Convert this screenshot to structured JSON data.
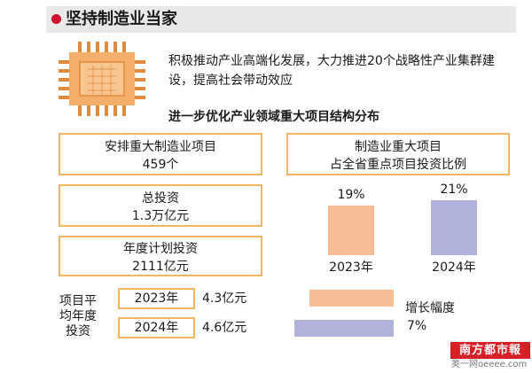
{
  "header": {
    "title": "坚持制造业当家",
    "dot_color": "#d0112b"
  },
  "intro": "积极推动产业高端化发展，大力推进20个战略性产业集群建设，提高社会带动效应",
  "section_title": "进一步优化产业领域重大项目结构分布",
  "stats": {
    "projects": {
      "label": "安排重大制造业项目",
      "value": "459个"
    },
    "total_investment": {
      "label": "总投资",
      "value": "1.3万亿元"
    },
    "annual_plan": {
      "label": "年度计划投资",
      "value": "2111亿元"
    }
  },
  "average": {
    "label": "项目平均年度投资",
    "rows": [
      {
        "year": "2023年",
        "value": "4.3亿元"
      },
      {
        "year": "2024年",
        "value": "4.6亿元"
      }
    ]
  },
  "share_box": {
    "line1": "制造业重大项目",
    "line2": "占全省重点项目投资比例"
  },
  "legend": {
    "growth_label": "增长幅度",
    "growth_value": "7%"
  },
  "watermark": {
    "brand": "南方都市報",
    "site": "奥一网oeeee.com"
  },
  "colors": {
    "accent_border": "#f0b663",
    "bar_2023": "#f7bd95",
    "bar_2024": "#b2b3db",
    "header_bg": "#e9e9e9"
  },
  "chart_data": {
    "type": "bar",
    "categories": [
      "2023年",
      "2024年"
    ],
    "values": [
      19,
      21
    ],
    "value_labels": [
      "19%",
      "21%"
    ],
    "ylim": [
      0,
      21
    ],
    "colors": [
      "#f7bd95",
      "#b2b3db"
    ],
    "grid": false
  }
}
